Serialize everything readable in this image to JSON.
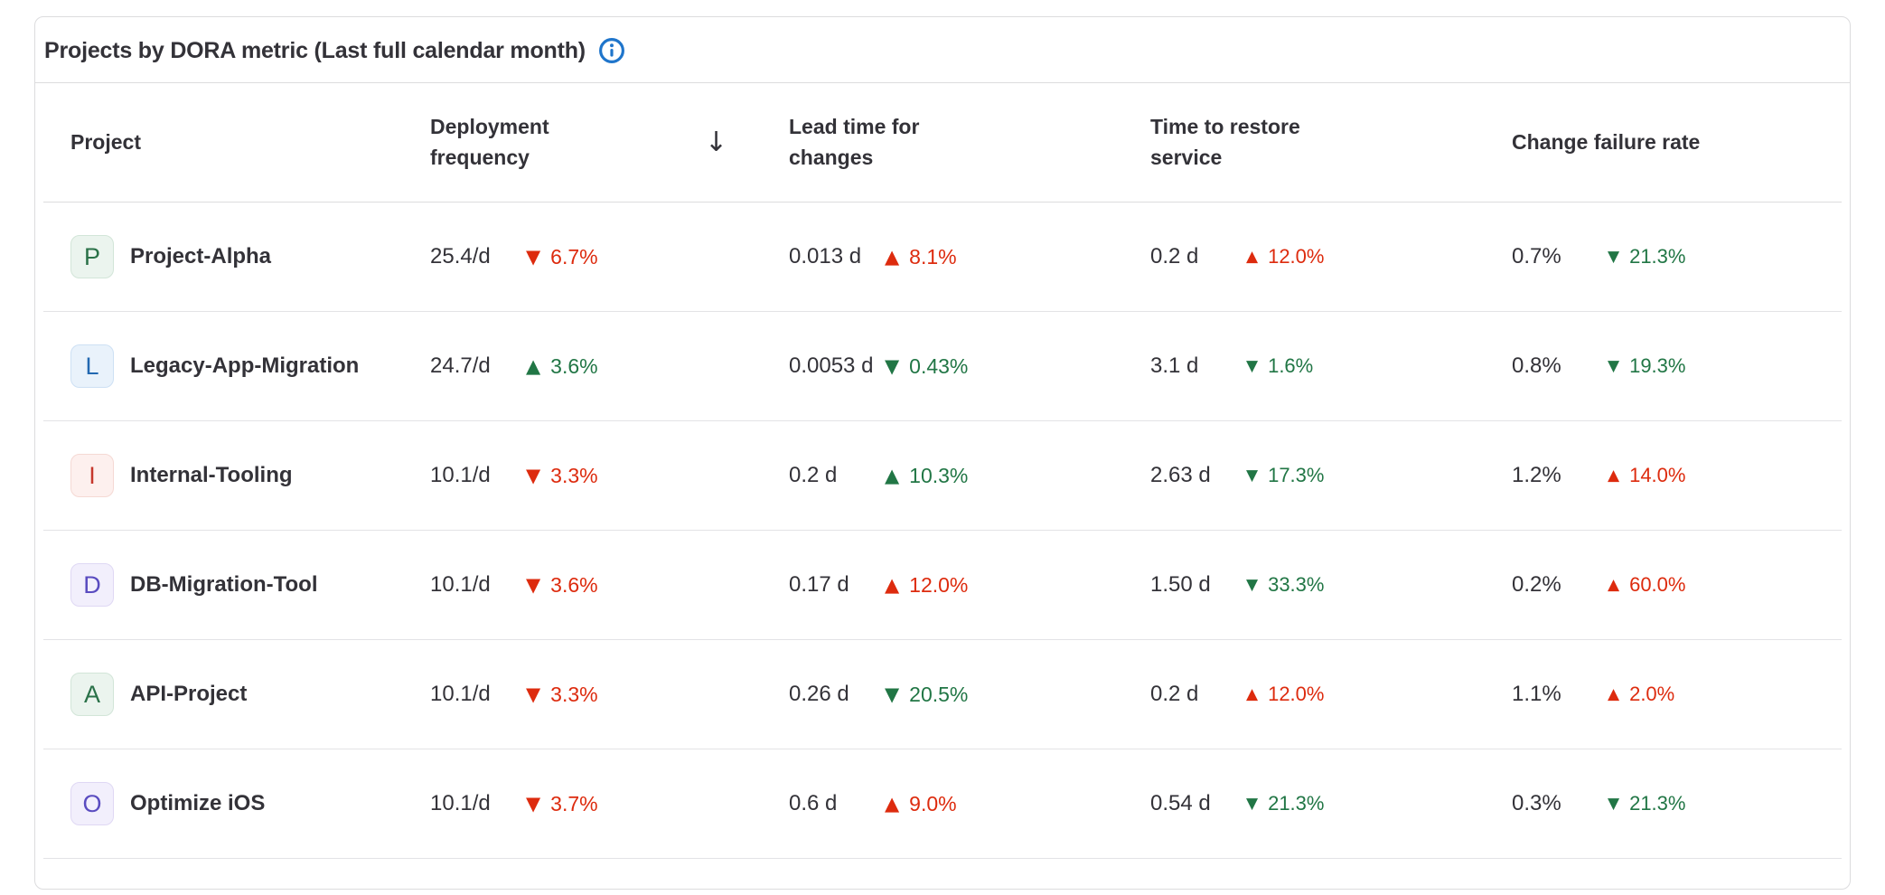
{
  "colors": {
    "good": "#217645",
    "bad": "#dd2b0e",
    "info_icon": "#1f75cb",
    "avatar_themes": {
      "green": {
        "bg": "#ebf4ee",
        "border": "#d2e5d8",
        "text": "#2a7148"
      },
      "blue": {
        "bg": "#e9f2fb",
        "border": "#cde0f4",
        "text": "#2268b1"
      },
      "red": {
        "bg": "#fdf0ee",
        "border": "#f5d9d4",
        "text": "#c6372c"
      },
      "purple": {
        "bg": "#f2effc",
        "border": "#dfd8f4",
        "text": "#5a4cc0"
      }
    }
  },
  "icons": {
    "trend_up": "▲",
    "trend_down": "▼",
    "sort_descending": "↓",
    "info": "information-icon"
  },
  "card": {
    "title": "Projects by DORA metric (Last full calendar month)"
  },
  "table": {
    "columns": [
      {
        "key": "project",
        "label_lines": [
          "Project"
        ]
      },
      {
        "key": "deployment-frequency",
        "label_lines": [
          "Deployment",
          "frequency"
        ],
        "sorted": "descending"
      },
      {
        "key": "lead-time-for-changes",
        "label_lines": [
          "Lead time for",
          "changes"
        ]
      },
      {
        "key": "time-to-restore-service",
        "label_lines": [
          "Time to restore",
          "service"
        ]
      },
      {
        "key": "change-failure-rate",
        "label_lines": [
          "Change failure rate"
        ]
      }
    ],
    "rows": [
      {
        "avatar": {
          "letter": "P",
          "theme": "green"
        },
        "name": "Project-Alpha",
        "metrics": [
          {
            "value": "25.4/d",
            "delta": "6.7%",
            "direction": "down",
            "trend": "bad"
          },
          {
            "value": "0.013 d",
            "delta": "8.1%",
            "direction": "up",
            "trend": "bad"
          },
          {
            "value": "0.2 d",
            "delta": "12.0%",
            "direction": "up",
            "trend": "bad"
          },
          {
            "value": "0.7%",
            "delta": "21.3%",
            "direction": "down",
            "trend": "good"
          }
        ]
      },
      {
        "avatar": {
          "letter": "L",
          "theme": "blue"
        },
        "name": "Legacy-App-Migration",
        "metrics": [
          {
            "value": "24.7/d",
            "delta": "3.6%",
            "direction": "up",
            "trend": "good"
          },
          {
            "value": "0.0053 d",
            "delta": "0.43%",
            "direction": "down",
            "trend": "good"
          },
          {
            "value": "3.1 d",
            "delta": "1.6%",
            "direction": "down",
            "trend": "good"
          },
          {
            "value": "0.8%",
            "delta": "19.3%",
            "direction": "down",
            "trend": "good"
          }
        ]
      },
      {
        "avatar": {
          "letter": "I",
          "theme": "red"
        },
        "name": "Internal-Tooling",
        "metrics": [
          {
            "value": "10.1/d",
            "delta": "3.3%",
            "direction": "down",
            "trend": "bad"
          },
          {
            "value": "0.2 d",
            "delta": "10.3%",
            "direction": "up",
            "trend": "good"
          },
          {
            "value": "2.63 d",
            "delta": "17.3%",
            "direction": "down",
            "trend": "good"
          },
          {
            "value": "1.2%",
            "delta": "14.0%",
            "direction": "up",
            "trend": "bad"
          }
        ]
      },
      {
        "avatar": {
          "letter": "D",
          "theme": "purple"
        },
        "name": "DB-Migration-Tool",
        "metrics": [
          {
            "value": "10.1/d",
            "delta": "3.6%",
            "direction": "down",
            "trend": "bad"
          },
          {
            "value": "0.17 d",
            "delta": "12.0%",
            "direction": "up",
            "trend": "bad"
          },
          {
            "value": "1.50 d",
            "delta": "33.3%",
            "direction": "down",
            "trend": "good"
          },
          {
            "value": "0.2%",
            "delta": "60.0%",
            "direction": "up",
            "trend": "bad"
          }
        ]
      },
      {
        "avatar": {
          "letter": "A",
          "theme": "green"
        },
        "name": "API-Project",
        "metrics": [
          {
            "value": "10.1/d",
            "delta": "3.3%",
            "direction": "down",
            "trend": "bad"
          },
          {
            "value": "0.26 d",
            "delta": "20.5%",
            "direction": "down",
            "trend": "good"
          },
          {
            "value": "0.2 d",
            "delta": "12.0%",
            "direction": "up",
            "trend": "bad"
          },
          {
            "value": "1.1%",
            "delta": "2.0%",
            "direction": "up",
            "trend": "bad"
          }
        ]
      },
      {
        "avatar": {
          "letter": "O",
          "theme": "purple"
        },
        "name": "Optimize iOS",
        "metrics": [
          {
            "value": "10.1/d",
            "delta": "3.7%",
            "direction": "down",
            "trend": "bad"
          },
          {
            "value": "0.6 d",
            "delta": "9.0%",
            "direction": "up",
            "trend": "bad"
          },
          {
            "value": "0.54 d",
            "delta": "21.3%",
            "direction": "down",
            "trend": "good"
          },
          {
            "value": "0.3%",
            "delta": "21.3%",
            "direction": "down",
            "trend": "good"
          }
        ]
      }
    ]
  }
}
